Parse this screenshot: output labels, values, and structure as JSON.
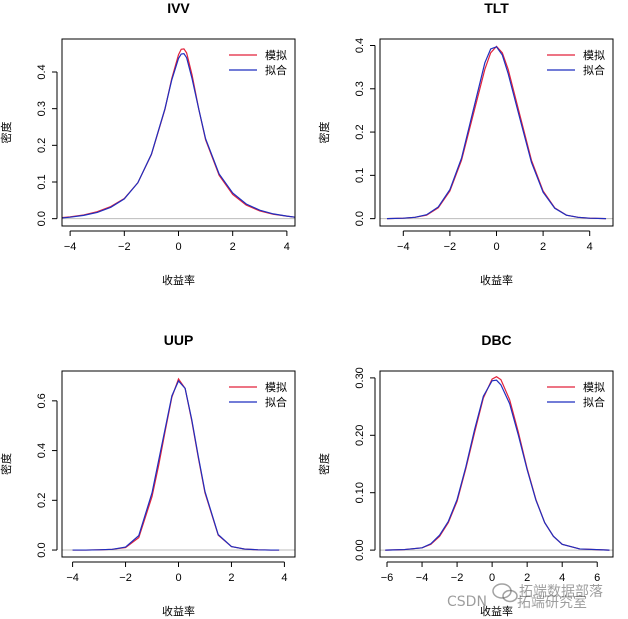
{
  "watermark": {
    "left": "CSDN",
    "right": "拓端数据部落",
    "bottom": "拓端研究室"
  },
  "colors": {
    "simulated": "#e2223a",
    "fitted": "#1f2fbf",
    "baseline": "#bbbbbb"
  },
  "chart_data": [
    {
      "type": "line",
      "title": "IVV",
      "xlabel": "收益率",
      "ylabel": "密度",
      "xlim": [
        -4.3,
        4.3
      ],
      "ylim": [
        -0.02,
        0.49
      ],
      "xticks": [
        -4,
        -2,
        0,
        2,
        4
      ],
      "yticks": [
        0.0,
        0.1,
        0.2,
        0.3,
        0.4
      ],
      "ytick_labels": [
        "0.0",
        "0.1",
        "0.2",
        "0.3",
        "0.4"
      ],
      "legend": {
        "position": "top-right",
        "entries": [
          "模拟",
          "拟合"
        ]
      },
      "series": [
        {
          "name": "模拟",
          "color": "#e2223a",
          "x": [
            -4.3,
            -4,
            -3.5,
            -3,
            -2.5,
            -2,
            -1.5,
            -1,
            -0.5,
            -0.25,
            0,
            0.1,
            0.2,
            0.3,
            0.5,
            0.75,
            1,
            1.5,
            2,
            2.5,
            3,
            3.5,
            4,
            4.3
          ],
          "y": [
            0.003,
            0.005,
            0.01,
            0.019,
            0.033,
            0.055,
            0.098,
            0.175,
            0.298,
            0.382,
            0.447,
            0.462,
            0.463,
            0.452,
            0.392,
            0.298,
            0.215,
            0.118,
            0.066,
            0.037,
            0.021,
            0.012,
            0.007,
            0.004
          ]
        },
        {
          "name": "拟合",
          "color": "#1f2fbf",
          "x": [
            -4.3,
            -4,
            -3.5,
            -3,
            -2.5,
            -2,
            -1.5,
            -1,
            -0.5,
            -0.25,
            0,
            0.1,
            0.2,
            0.3,
            0.5,
            0.75,
            1,
            1.5,
            2,
            2.5,
            3,
            3.5,
            4,
            4.3
          ],
          "y": [
            0.002,
            0.004,
            0.009,
            0.017,
            0.031,
            0.054,
            0.098,
            0.176,
            0.3,
            0.378,
            0.437,
            0.449,
            0.45,
            0.439,
            0.382,
            0.298,
            0.218,
            0.122,
            0.07,
            0.04,
            0.023,
            0.013,
            0.007,
            0.004
          ]
        }
      ]
    },
    {
      "type": "line",
      "title": "TLT",
      "xlabel": "收益率",
      "ylabel": "密度",
      "xlim": [
        -5.0,
        5.0
      ],
      "ylim": [
        -0.017,
        0.415
      ],
      "xticks": [
        -4,
        -2,
        0,
        2,
        4
      ],
      "yticks": [
        0.0,
        0.1,
        0.2,
        0.3,
        0.4
      ],
      "ytick_labels": [
        "0.0",
        "0.1",
        "0.2",
        "0.3",
        "0.4"
      ],
      "legend": {
        "position": "top-right",
        "entries": [
          "模拟",
          "拟合"
        ]
      },
      "series": [
        {
          "name": "模拟",
          "color": "#e2223a",
          "x": [
            -4.7,
            -4,
            -3.5,
            -3,
            -2.5,
            -2,
            -1.5,
            -1,
            -0.5,
            -0.25,
            0,
            0.25,
            0.5,
            1,
            1.5,
            2,
            2.5,
            3,
            3.5,
            4,
            4.7
          ],
          "y": [
            0.0,
            0.001,
            0.003,
            0.008,
            0.025,
            0.064,
            0.135,
            0.24,
            0.345,
            0.383,
            0.398,
            0.383,
            0.345,
            0.24,
            0.135,
            0.064,
            0.025,
            0.008,
            0.003,
            0.001,
            0.0
          ]
        },
        {
          "name": "拟合",
          "color": "#1f2fbf",
          "x": [
            -4.7,
            -4,
            -3.5,
            -3,
            -2.5,
            -2,
            -1.5,
            -1,
            -0.5,
            -0.25,
            0,
            0.25,
            0.5,
            1,
            1.5,
            2,
            2.5,
            3,
            3.5,
            4,
            4.7
          ],
          "y": [
            0.0,
            0.001,
            0.003,
            0.009,
            0.027,
            0.067,
            0.14,
            0.25,
            0.36,
            0.392,
            0.397,
            0.378,
            0.335,
            0.232,
            0.13,
            0.061,
            0.024,
            0.008,
            0.003,
            0.001,
            0.0
          ]
        }
      ]
    },
    {
      "type": "line",
      "title": "UUP",
      "xlabel": "收益率",
      "ylabel": "密度",
      "xlim": [
        -4.4,
        4.4
      ],
      "ylim": [
        -0.028,
        0.72
      ],
      "xticks": [
        -4,
        -2,
        0,
        2,
        4
      ],
      "yticks": [
        0.0,
        0.2,
        0.4,
        0.6
      ],
      "ytick_labels": [
        "0.0",
        "0.2",
        "0.4",
        "0.6"
      ],
      "legend": {
        "position": "top-right",
        "entries": [
          "模拟",
          "拟合"
        ]
      },
      "series": [
        {
          "name": "模拟",
          "color": "#e2223a",
          "x": [
            -4,
            -3.5,
            -3,
            -2.5,
            -2,
            -1.5,
            -1,
            -0.75,
            -0.5,
            -0.25,
            0,
            0.25,
            0.5,
            0.75,
            1,
            1.5,
            2,
            2.5,
            3,
            3.5,
            3.8
          ],
          "y": [
            0.0,
            0.0,
            0.001,
            0.003,
            0.01,
            0.05,
            0.215,
            0.34,
            0.48,
            0.615,
            0.688,
            0.65,
            0.52,
            0.37,
            0.23,
            0.06,
            0.014,
            0.004,
            0.001,
            0.0,
            0.0
          ]
        },
        {
          "name": "拟合",
          "color": "#1f2fbf",
          "x": [
            -4,
            -3.5,
            -3,
            -2.5,
            -2,
            -1.5,
            -1,
            -0.75,
            -0.5,
            -0.25,
            0,
            0.25,
            0.5,
            0.75,
            1,
            1.5,
            2,
            2.5,
            3,
            3.5,
            3.8
          ],
          "y": [
            0.0,
            0.0,
            0.001,
            0.003,
            0.012,
            0.058,
            0.23,
            0.36,
            0.49,
            0.62,
            0.68,
            0.65,
            0.525,
            0.375,
            0.235,
            0.062,
            0.014,
            0.004,
            0.001,
            0.0,
            0.0
          ]
        }
      ]
    },
    {
      "type": "line",
      "title": "DBC",
      "xlabel": "收益率",
      "ylabel": "密度",
      "xlim": [
        -6.4,
        6.9
      ],
      "ylim": [
        -0.012,
        0.312
      ],
      "xticks": [
        -6,
        -4,
        -2,
        0,
        2,
        4,
        6
      ],
      "yticks": [
        0.0,
        0.1,
        0.2,
        0.3
      ],
      "ytick_labels": [
        "0.00",
        "0.10",
        "0.20",
        "0.30"
      ],
      "legend": {
        "position": "top-right",
        "entries": [
          "模拟",
          "拟合"
        ]
      },
      "series": [
        {
          "name": "模拟",
          "color": "#e2223a",
          "x": [
            -6.1,
            -5,
            -4,
            -3.5,
            -3,
            -2.5,
            -2,
            -1.5,
            -1,
            -0.5,
            0,
            0.25,
            0.5,
            1,
            1.5,
            2,
            2.5,
            3,
            3.5,
            4,
            5,
            6.7
          ],
          "y": [
            0.0,
            0.001,
            0.004,
            0.01,
            0.024,
            0.048,
            0.085,
            0.142,
            0.205,
            0.265,
            0.298,
            0.302,
            0.297,
            0.262,
            0.205,
            0.142,
            0.088,
            0.048,
            0.024,
            0.01,
            0.002,
            0.0
          ]
        },
        {
          "name": "拟合",
          "color": "#1f2fbf",
          "x": [
            -6.1,
            -5,
            -4,
            -3.5,
            -3,
            -2.5,
            -2,
            -1.5,
            -1,
            -0.5,
            0,
            0.25,
            0.5,
            1,
            1.5,
            2,
            2.5,
            3,
            3.5,
            4,
            5,
            6.7
          ],
          "y": [
            0.0,
            0.001,
            0.004,
            0.011,
            0.026,
            0.05,
            0.088,
            0.145,
            0.21,
            0.268,
            0.295,
            0.296,
            0.288,
            0.255,
            0.2,
            0.14,
            0.087,
            0.048,
            0.024,
            0.01,
            0.002,
            0.0
          ]
        }
      ]
    }
  ]
}
